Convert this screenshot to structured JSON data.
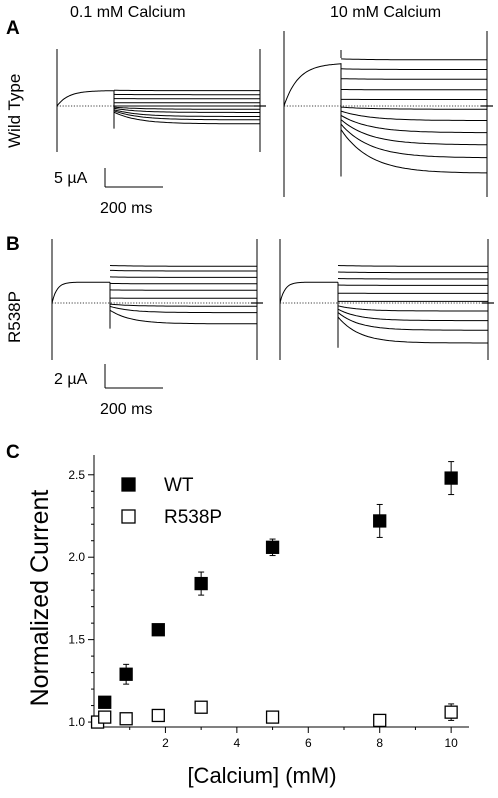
{
  "panels": {
    "a": {
      "letter": "A",
      "row_label": "Wild Type",
      "scale_current": "5 µA",
      "scale_time": "200 ms"
    },
    "b": {
      "letter": "B",
      "row_label": "R538P",
      "scale_current": "2 µA",
      "scale_time": "200 ms"
    },
    "c": {
      "letter": "C"
    }
  },
  "conditions": {
    "low": "0.1 mM Calcium",
    "high": "10 mM Calcium"
  },
  "chart_data": {
    "type": "scatter",
    "title": "",
    "xlabel": "[Calcium] (mM)",
    "ylabel": "Normalized Current",
    "xlim": [
      0,
      10.5
    ],
    "ylim": [
      0.97,
      2.62
    ],
    "xticks": [
      2,
      4,
      6,
      8,
      10
    ],
    "yticks": [
      1.0,
      1.5,
      2.0,
      2.5
    ],
    "ytick_labels": [
      "1.0",
      "1.5",
      "2.0",
      "2.5"
    ],
    "grid": false,
    "legend_position": "top-left",
    "series": [
      {
        "name": "WT",
        "marker": "filled-square",
        "color": "#000000",
        "points": [
          {
            "x": 0.3,
            "y": 1.12,
            "err": 0.0
          },
          {
            "x": 0.9,
            "y": 1.29,
            "err": 0.06
          },
          {
            "x": 1.8,
            "y": 1.56,
            "err": 0.03
          },
          {
            "x": 3.0,
            "y": 1.84,
            "err": 0.07
          },
          {
            "x": 5.0,
            "y": 2.06,
            "err": 0.05
          },
          {
            "x": 8.0,
            "y": 2.22,
            "err": 0.1
          },
          {
            "x": 10.0,
            "y": 2.48,
            "err": 0.1
          }
        ]
      },
      {
        "name": "R538P",
        "marker": "open-square",
        "color": "#000000",
        "points": [
          {
            "x": 0.1,
            "y": 1.0,
            "err": 0.0
          },
          {
            "x": 0.3,
            "y": 1.03,
            "err": 0.0
          },
          {
            "x": 0.9,
            "y": 1.02,
            "err": 0.0
          },
          {
            "x": 1.8,
            "y": 1.04,
            "err": 0.0
          },
          {
            "x": 3.0,
            "y": 1.09,
            "err": 0.0
          },
          {
            "x": 5.0,
            "y": 1.03,
            "err": 0.0
          },
          {
            "x": 8.0,
            "y": 1.01,
            "err": 0.0
          },
          {
            "x": 10.0,
            "y": 1.06,
            "err": 0.05
          }
        ]
      }
    ]
  },
  "traces": {
    "wt_low_tail_currents_uA": [
      1.9,
      1.4,
      0.9,
      0.4,
      0.0,
      -0.4,
      -0.8,
      -1.3,
      -1.7,
      -2.2
    ],
    "wt_high_tail_currents_uA": [
      5.7,
      4.5,
      3.3,
      2.0,
      0.8,
      -0.4,
      -1.8,
      -3.3,
      -4.8,
      -6.4,
      -8.3
    ],
    "r538p_low_tail_currents_uA": [
      2.3,
      2.0,
      1.6,
      1.2,
      0.8,
      0.3,
      -0.2,
      -0.6,
      -1.3
    ],
    "r538p_high_tail_currents_uA": [
      2.3,
      1.9,
      1.5,
      1.1,
      0.6,
      0.1,
      -0.5,
      -1.1,
      -1.7,
      -2.5
    ]
  }
}
